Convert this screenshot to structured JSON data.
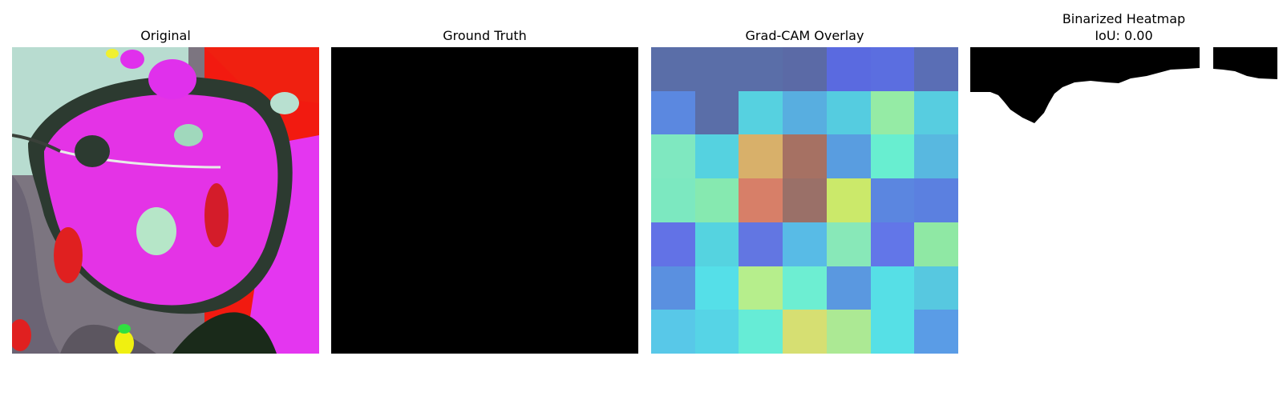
{
  "panels": {
    "original": {
      "title": "Original"
    },
    "ground_truth": {
      "title": "Ground Truth"
    },
    "gradcam": {
      "title": "Grad-CAM Overlay",
      "cells": [
        [
          "#5a6ea8",
          "#5a6ea8",
          "#5a6ea8",
          "#5b6aa6",
          "#5a6ae0",
          "#5b6ee0",
          "#5a6eb5"
        ],
        [
          "#5b88e0",
          "#5a6ea8",
          "#56d1e0",
          "#58aee0",
          "#55cce0",
          "#95eba5",
          "#57cde0"
        ],
        [
          "#7fe8c0",
          "#55d2e0",
          "#d8b06a",
          "#a67163",
          "#599de0",
          "#68eed0",
          "#58b8e0"
        ],
        [
          "#7ce8c0",
          "#86e9b0",
          "#d77f68",
          "#9a7068",
          "#cbe96a",
          "#5b86e0",
          "#5b80e0"
        ],
        [
          "#6272e6",
          "#55d3e0",
          "#6276e2",
          "#58bbe6",
          "#88e8b8",
          "#6276e8",
          "#8fe8a4"
        ],
        [
          "#5a90e0",
          "#55dfe8",
          "#b6ee8c",
          "#6deed2",
          "#5a98e0",
          "#56dfe6",
          "#57c8e0"
        ],
        [
          "#58c8e8",
          "#56d4e6",
          "#66ecd6",
          "#d6df72",
          "#ace994",
          "#56e0e6",
          "#5a9ce6"
        ]
      ]
    },
    "binarized": {
      "title_line1": "Binarized Heatmap",
      "title_line2": "IoU: 0.00"
    }
  }
}
